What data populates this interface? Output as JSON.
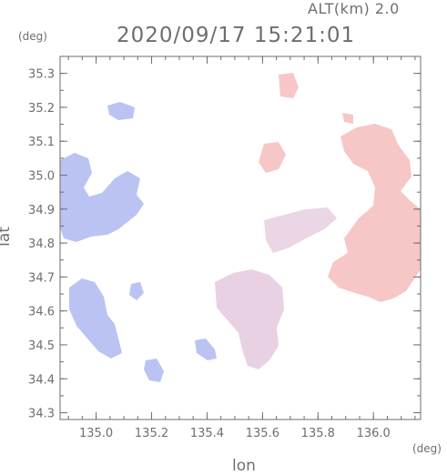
{
  "header": {
    "altitude": "ALT(km) 2.0",
    "timestamp": "2020/09/17 15:21:01"
  },
  "axes": {
    "x_label": "lon",
    "x_unit": "(deg)",
    "y_label": "lat",
    "y_unit": "(deg)",
    "x_ticks": [
      "135.0",
      "135.2",
      "135.4",
      "135.6",
      "135.8",
      "136.0"
    ],
    "y_ticks": [
      "35.3",
      "35.2",
      "35.1",
      "35.0",
      "34.9",
      "34.8",
      "34.7",
      "34.6",
      "34.5",
      "34.4",
      "34.3"
    ]
  },
  "colors": {
    "frame": "#6e6e6e",
    "approaching": "#9aa6ee",
    "receding": "#f2a8a8"
  },
  "map": {
    "type": "doppler-velocity-radar-map",
    "xlim": [
      134.87,
      136.17
    ],
    "ylim": [
      34.28,
      35.35
    ]
  }
}
